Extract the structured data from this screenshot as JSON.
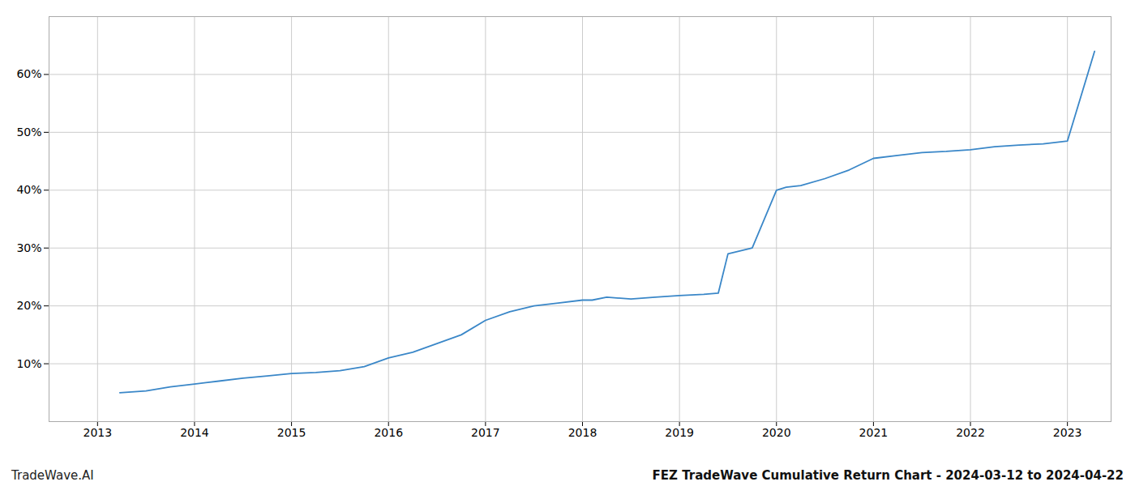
{
  "chart_data": {
    "type": "line",
    "title": "FEZ TradeWave Cumulative Return Chart - 2024-03-12 to 2024-04-22",
    "annotations": [
      "TradeWave.AI"
    ],
    "x": [
      2013.23,
      2013.5,
      2013.75,
      2014.0,
      2014.25,
      2014.5,
      2014.75,
      2015.0,
      2015.25,
      2015.5,
      2015.75,
      2016.0,
      2016.25,
      2016.5,
      2016.75,
      2017.0,
      2017.25,
      2017.5,
      2017.75,
      2018.0,
      2018.1,
      2018.25,
      2018.5,
      2018.75,
      2019.0,
      2019.25,
      2019.4,
      2019.5,
      2019.75,
      2020.0,
      2020.1,
      2020.25,
      2020.5,
      2020.75,
      2021.0,
      2021.25,
      2021.5,
      2021.75,
      2022.0,
      2022.25,
      2022.5,
      2022.75,
      2023.0,
      2023.28
    ],
    "values": [
      5.0,
      5.3,
      6.0,
      6.5,
      7.0,
      7.5,
      7.9,
      8.3,
      8.5,
      8.8,
      9.5,
      11.0,
      12.0,
      13.5,
      15.0,
      17.5,
      19.0,
      20.0,
      20.5,
      21.0,
      21.0,
      21.5,
      21.2,
      21.5,
      21.8,
      22.0,
      22.2,
      29.0,
      30.0,
      40.0,
      40.5,
      40.8,
      42.0,
      43.5,
      45.5,
      46.0,
      46.5,
      46.7,
      47.0,
      47.5,
      47.8,
      48.0,
      48.5,
      64.0
    ],
    "color": "#3a87c8",
    "xlim": [
      2012.5,
      2023.45
    ],
    "xticks": [
      2013,
      2014,
      2015,
      2016,
      2017,
      2018,
      2019,
      2020,
      2021,
      2022,
      2023
    ],
    "ylim": [
      0,
      70
    ],
    "yticks": [
      {
        "value": 10,
        "label": "10%"
      },
      {
        "value": 20,
        "label": "20%"
      },
      {
        "value": 30,
        "label": "30%"
      },
      {
        "value": 40,
        "label": "40%"
      },
      {
        "value": 50,
        "label": "50%"
      },
      {
        "value": 60,
        "label": "60%"
      }
    ],
    "grid": true
  }
}
